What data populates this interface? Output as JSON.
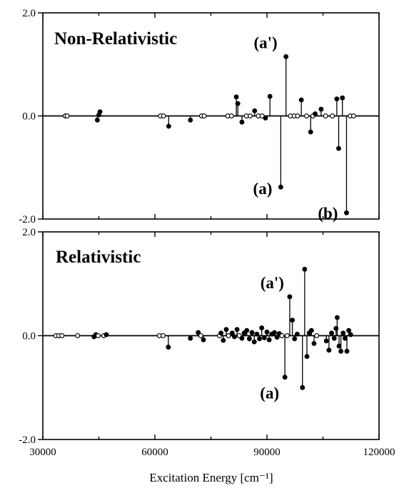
{
  "chart_data": [
    {
      "type": "scatter",
      "style": "stem",
      "title": "Non-Relativistic",
      "xlim": [
        30000,
        120000
      ],
      "ylim": [
        -2.0,
        2.0
      ],
      "y_tick_labels": [
        "2.0",
        "0.0",
        "-2.0"
      ],
      "grid": false,
      "annotations": [
        {
          "label": "(a')",
          "x": 95100,
          "y": 1.15
        },
        {
          "label": "(a)",
          "x": 93700,
          "y": -1.38
        },
        {
          "label": "(b)",
          "x": 111300,
          "y": -1.88
        }
      ],
      "points": [
        {
          "x": 36000,
          "y": 0.0
        },
        {
          "x": 36500,
          "y": 0.0
        },
        {
          "x": 44600,
          "y": -0.08
        },
        {
          "x": 45000,
          "y": 0.02
        },
        {
          "x": 45300,
          "y": 0.08
        },
        {
          "x": 61500,
          "y": 0.0
        },
        {
          "x": 62300,
          "y": 0.0
        },
        {
          "x": 63700,
          "y": -0.2
        },
        {
          "x": 69500,
          "y": -0.08
        },
        {
          "x": 72500,
          "y": 0.0
        },
        {
          "x": 73200,
          "y": 0.0
        },
        {
          "x": 79500,
          "y": 0.0
        },
        {
          "x": 80500,
          "y": 0.0
        },
        {
          "x": 81800,
          "y": 0.37
        },
        {
          "x": 82200,
          "y": 0.24
        },
        {
          "x": 83300,
          "y": -0.12
        },
        {
          "x": 84500,
          "y": 0.0
        },
        {
          "x": 85500,
          "y": 0.0
        },
        {
          "x": 86700,
          "y": 0.1
        },
        {
          "x": 87700,
          "y": 0.0
        },
        {
          "x": 88700,
          "y": 0.0
        },
        {
          "x": 89600,
          "y": -0.04
        },
        {
          "x": 90800,
          "y": 0.38
        },
        {
          "x": 93700,
          "y": -1.38
        },
        {
          "x": 95100,
          "y": 1.15
        },
        {
          "x": 96300,
          "y": 0.0
        },
        {
          "x": 97300,
          "y": 0.0
        },
        {
          "x": 98200,
          "y": 0.0
        },
        {
          "x": 99200,
          "y": 0.31
        },
        {
          "x": 100600,
          "y": 0.0
        },
        {
          "x": 101700,
          "y": -0.31
        },
        {
          "x": 102300,
          "y": 0.0
        },
        {
          "x": 102900,
          "y": 0.04
        },
        {
          "x": 104500,
          "y": 0.13
        },
        {
          "x": 105700,
          "y": 0.0
        },
        {
          "x": 107500,
          "y": 0.0
        },
        {
          "x": 108700,
          "y": 0.33
        },
        {
          "x": 109200,
          "y": -0.63
        },
        {
          "x": 110200,
          "y": 0.35
        },
        {
          "x": 111300,
          "y": -1.88
        },
        {
          "x": 112300,
          "y": 0.0
        },
        {
          "x": 113200,
          "y": 0.0
        }
      ]
    },
    {
      "type": "scatter",
      "style": "stem",
      "title": "Relativistic",
      "xlabel": "Excitation Energy [cm⁻¹]",
      "xlim": [
        30000,
        120000
      ],
      "x_tick_labels": [
        "30000",
        "60000",
        "90000",
        "120000"
      ],
      "ylim": [
        -2.0,
        2.0
      ],
      "y_tick_labels": [
        "2.0",
        "0.0",
        "-2.0"
      ],
      "grid": false,
      "annotations": [
        {
          "label": "(a')",
          "x": 96100,
          "y": 0.75
        },
        {
          "label": "(a)",
          "x": 94800,
          "y": -0.8
        }
      ],
      "points": [
        {
          "x": 33500,
          "y": 0.0
        },
        {
          "x": 34300,
          "y": 0.0
        },
        {
          "x": 35100,
          "y": 0.0
        },
        {
          "x": 39300,
          "y": 0.0
        },
        {
          "x": 43700,
          "y": -0.02
        },
        {
          "x": 44200,
          "y": 0.02
        },
        {
          "x": 44800,
          "y": 0.0
        },
        {
          "x": 46300,
          "y": 0.0
        },
        {
          "x": 47000,
          "y": 0.02
        },
        {
          "x": 61200,
          "y": 0.0
        },
        {
          "x": 62200,
          "y": 0.0
        },
        {
          "x": 63600,
          "y": -0.22
        },
        {
          "x": 69500,
          "y": -0.05
        },
        {
          "x": 71600,
          "y": 0.06
        },
        {
          "x": 72300,
          "y": 0.0
        },
        {
          "x": 73000,
          "y": -0.08
        },
        {
          "x": 77300,
          "y": 0.0
        },
        {
          "x": 77700,
          "y": 0.05
        },
        {
          "x": 78300,
          "y": -0.09
        },
        {
          "x": 79100,
          "y": 0.12
        },
        {
          "x": 79700,
          "y": 0.0
        },
        {
          "x": 80700,
          "y": 0.05
        },
        {
          "x": 81300,
          "y": -0.02
        },
        {
          "x": 82000,
          "y": 0.12
        },
        {
          "x": 82600,
          "y": 0.0
        },
        {
          "x": 83300,
          "y": -0.05
        },
        {
          "x": 83900,
          "y": 0.05
        },
        {
          "x": 84600,
          "y": 0.1
        },
        {
          "x": 85300,
          "y": -0.06
        },
        {
          "x": 86000,
          "y": 0.06
        },
        {
          "x": 86600,
          "y": -0.12
        },
        {
          "x": 87300,
          "y": 0.03
        },
        {
          "x": 88000,
          "y": -0.06
        },
        {
          "x": 88600,
          "y": 0.15
        },
        {
          "x": 89300,
          "y": -0.04
        },
        {
          "x": 90000,
          "y": 0.07
        },
        {
          "x": 90600,
          "y": -0.08
        },
        {
          "x": 91300,
          "y": 0.03
        },
        {
          "x": 92000,
          "y": 0.06
        },
        {
          "x": 92700,
          "y": -0.03
        },
        {
          "x": 93300,
          "y": 0.04
        },
        {
          "x": 94000,
          "y": 0.0
        },
        {
          "x": 94800,
          "y": -0.8
        },
        {
          "x": 95400,
          "y": 0.0
        },
        {
          "x": 96100,
          "y": 0.75
        },
        {
          "x": 96800,
          "y": 0.3
        },
        {
          "x": 97400,
          "y": -0.06
        },
        {
          "x": 98100,
          "y": 0.03
        },
        {
          "x": 99500,
          "y": -1.0
        },
        {
          "x": 100100,
          "y": 1.28
        },
        {
          "x": 100700,
          "y": -0.4
        },
        {
          "x": 101300,
          "y": 0.05
        },
        {
          "x": 101900,
          "y": 0.1
        },
        {
          "x": 102600,
          "y": -0.15
        },
        {
          "x": 103300,
          "y": 0.0
        },
        {
          "x": 105900,
          "y": -0.1
        },
        {
          "x": 106600,
          "y": -0.28
        },
        {
          "x": 107300,
          "y": 0.05
        },
        {
          "x": 108000,
          "y": -0.05
        },
        {
          "x": 108500,
          "y": 0.14
        },
        {
          "x": 108800,
          "y": 0.35
        },
        {
          "x": 109300,
          "y": -0.2
        },
        {
          "x": 109800,
          "y": -0.3
        },
        {
          "x": 110400,
          "y": 0.05
        },
        {
          "x": 110900,
          "y": -0.05
        },
        {
          "x": 111400,
          "y": -0.3
        },
        {
          "x": 111900,
          "y": 0.1
        },
        {
          "x": 112400,
          "y": 0.02
        }
      ]
    }
  ]
}
